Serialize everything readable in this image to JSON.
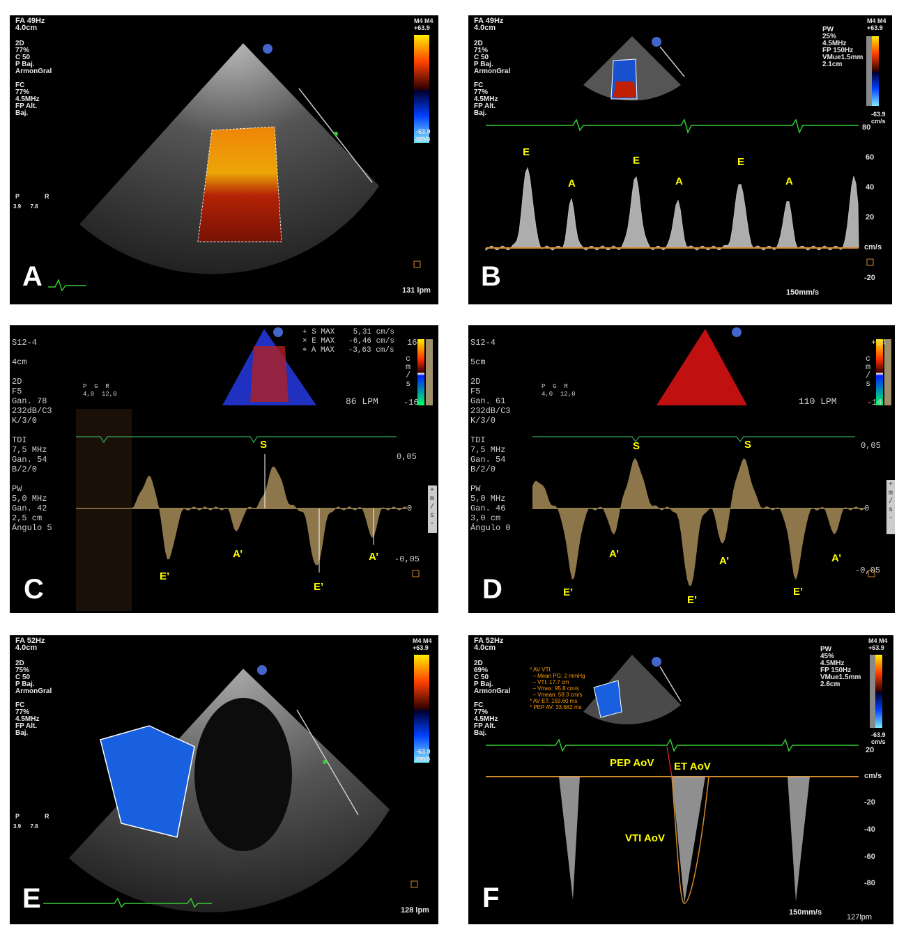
{
  "panels": {
    "A": {
      "letter": "A",
      "header": "FA 49Hz\n4.0cm",
      "params": "2D\n77%\nC 50\nP Baj.\nArmonGral\n\nFC\n77%\n4.5MHz\nFP Alt.\nBaj.",
      "scale_top": "M4 M4\n+63.9",
      "scale_bottom": "-63.9\ncm/s",
      "probe_p": "P",
      "probe_r": "R",
      "probe_nums": "3.9      7.8",
      "rate": "131 lpm"
    },
    "B": {
      "letter": "B",
      "header": "FA 49Hz\n4.0cm",
      "params": "2D\n71%\nC 50\nP Baj.\nArmonGral\n\nFC\n77%\n4.5MHz\nFP Alt.\nBaj.",
      "pw": "PW\n25%\n4.5MHz\nFP 150Hz\nVMue1.5mm\n2.1cm",
      "scale_top": "M4 M4\n+63.9",
      "scale_bottom": "-63.9\ncm/s",
      "axis": [
        "80",
        "60",
        "40",
        "20",
        "cm/s",
        "-20"
      ],
      "speed": "150mm/s",
      "labels": [
        "E",
        "A",
        "E",
        "A",
        "E",
        "A"
      ]
    },
    "C": {
      "letter": "C",
      "params": "S12-4\n\n4cm\n\n2D\nF5\nGan. 78\n232dB/C3\nK/3/0\n\nTDI\n7,5 MHz\nGan. 54\nB/2/0\n\nPW\n5,0 MHz\nGan. 42\n2,5 cm\nÁngulo 5",
      "meas": "+ S MAX    5,31 cm/s\n× E MAX   -6,46 cm/s\n⌖ A MAX   -3,63 cm/s",
      "scale_top": "16",
      "scale_bottom": "-16",
      "unit": "c\nm\n/\ns",
      "lpm": "86 LPM",
      "probe": "P  G  R\n4,0  12,0",
      "axis": [
        "0,05",
        "0",
        "-0,05"
      ],
      "axis_unit": "+\nm\n/\ns\n-",
      "labels": [
        "S",
        "E’",
        "A’",
        "E’",
        "A’"
      ]
    },
    "D": {
      "letter": "D",
      "params": "S12-4\n\n5cm\n\n2D\nF5\nGan. 61\n232dB/C3\nK/3/0\n\nTDI\n7,5 MHz\nGan. 54\nB/2/0\n\nPW\n5,0 MHz\nGan. 46\n3,0 cm\nÁngulo 0",
      "scale_top": "+14",
      "scale_bottom": "-14",
      "unit": "c\nm\n/\ns",
      "lpm": "110 LPM",
      "probe": "P  G  R\n4,0  12,0",
      "axis": [
        "0,05",
        "0",
        "-0,05"
      ],
      "axis_unit": "+\nm\n/\ns\n-",
      "labels": [
        "S",
        "S",
        "E’",
        "A’",
        "E’",
        "A’",
        "E’",
        "A’"
      ]
    },
    "E": {
      "letter": "E",
      "header": "FA 52Hz\n4.0cm",
      "params": "2D\n75%\nC 50\nP Baj.\nArmonGral\n\nFC\n77%\n4.5MHz\nFP Alt.\nBaj.",
      "scale_top": "M4 M4\n+63.9",
      "scale_bottom": "-63.9\ncm/s",
      "probe_p": "P",
      "probe_r": "R",
      "probe_nums": "3.9      7.8",
      "rate": "128 lpm"
    },
    "F": {
      "letter": "F",
      "header": "FA 52Hz\n4.0cm",
      "params": "2D\n69%\nC 50\nP Baj.\nArmonGral\n\nFC\n77%\n4.5MHz\nFP Alt.\nBaj.",
      "pw": "PW\n45%\n4.5MHz\nFP 150Hz\nVMue1.5mm\n2.6cm",
      "scale_top": "M4 M4\n+63.9",
      "scale_bottom": "-63.9\ncm/s",
      "avvti": "⁰ AV VTI\n  – Mean PG: 2 mmHg\n  – VTI: 17.7 cm\n  – Vmax: 95.8 cm/s\n  – Vmean: 58.3 cm/s\n* AV ET: 159.60 ms\n* PEP AV: 33.682 ms",
      "axis": [
        "20",
        "cm/s",
        "-20",
        "-40",
        "-60",
        "-80"
      ],
      "speed": "150mm/s",
      "rate": "127lpm",
      "labels": [
        "PEP AoV",
        "ET AoV",
        "VTI AoV"
      ]
    }
  },
  "colors": {
    "yellow_label": "#ffff00",
    "ecg": "#33cc33",
    "baseline": "#d48a2c",
    "tdi": "#c9a86a"
  }
}
